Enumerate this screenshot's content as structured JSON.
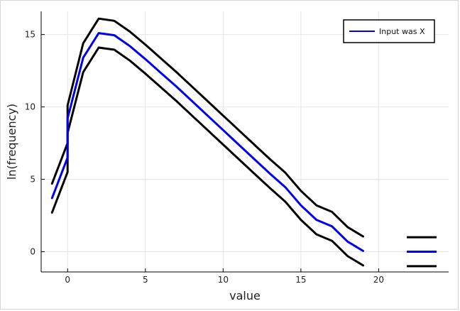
{
  "chart_data": {
    "type": "line",
    "xlabel": "value",
    "ylabel": "ln(frequency)",
    "xlim": [
      -1.7,
      24.5
    ],
    "ylim": [
      -1.4,
      16.6
    ],
    "xticks": [
      0,
      5,
      10,
      15,
      20
    ],
    "yticks": [
      0,
      5,
      10,
      15
    ],
    "grid": true,
    "legend": {
      "position": "top-right",
      "entries": [
        "Input was X"
      ]
    },
    "series": [
      {
        "name": "Input was X",
        "color": "#0000ee",
        "x": [
          -1,
          0,
          0,
          1,
          2,
          3,
          4,
          5,
          6,
          7,
          8,
          9,
          10,
          11,
          12,
          13,
          14,
          15,
          16,
          17,
          18,
          19
        ],
        "y": [
          3.7,
          6.5,
          9.2,
          13.4,
          15.1,
          14.95,
          14.2,
          13.3,
          12.35,
          11.4,
          10.4,
          9.4,
          8.4,
          7.4,
          6.4,
          5.4,
          4.45,
          3.2,
          2.2,
          1.75,
          0.7,
          0.05
        ]
      },
      {
        "color": "#000000",
        "x": [
          -1,
          0,
          0,
          1,
          2,
          3,
          4,
          5,
          6,
          7,
          8,
          9,
          10,
          11,
          12,
          13,
          14,
          15,
          16,
          17,
          18,
          19
        ],
        "y": [
          4.7,
          7.5,
          10.1,
          14.4,
          16.1,
          15.95,
          15.2,
          14.3,
          13.35,
          12.4,
          11.4,
          10.4,
          9.4,
          8.4,
          7.4,
          6.4,
          5.45,
          4.2,
          3.2,
          2.75,
          1.7,
          1.05
        ]
      },
      {
        "color": "#000000",
        "x": [
          -1,
          0,
          0,
          1,
          2,
          3,
          4,
          5,
          6,
          7,
          8,
          9,
          10,
          11,
          12,
          13,
          14,
          15,
          16,
          17,
          18,
          19
        ],
        "y": [
          2.7,
          5.5,
          8.2,
          12.4,
          14.1,
          13.95,
          13.2,
          12.3,
          11.35,
          10.4,
          9.4,
          8.4,
          7.4,
          6.4,
          5.4,
          4.4,
          3.45,
          2.2,
          1.2,
          0.75,
          -0.3,
          -0.95
        ]
      }
    ],
    "end_markers": [
      {
        "y": 1.0,
        "color": "#000000"
      },
      {
        "y": 0.0,
        "color": "#0000ee"
      },
      {
        "y": -1.0,
        "color": "#000000"
      }
    ]
  }
}
